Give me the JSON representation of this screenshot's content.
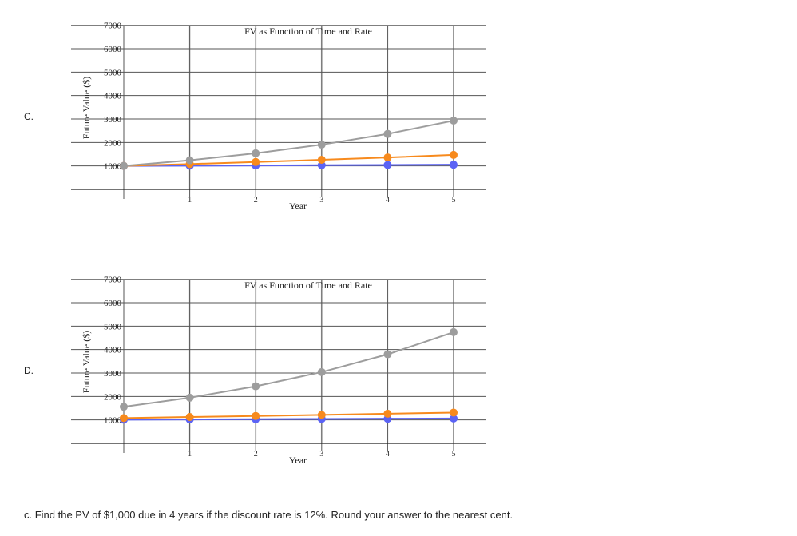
{
  "options": [
    {
      "label": "C."
    },
    {
      "label": "D."
    }
  ],
  "question": "c. Find the PV of $1,000 due in 4 years if the discount rate is 12%. Round your answer to the nearest cent.",
  "colors": {
    "series": [
      "#5b63f5",
      "#f78a1d",
      "#9d9d9d"
    ],
    "grid_major": "#555555",
    "grid_minor": "#dddddd"
  },
  "chart_data": [
    {
      "type": "line",
      "title": "FV as Function of Time and Rate",
      "xlabel": "Year",
      "ylabel": "Future Value ($)",
      "x": [
        0,
        1,
        2,
        3,
        4,
        5
      ],
      "x_tick_labels": [
        "1",
        "2",
        "3",
        "4",
        "5"
      ],
      "y_ticks": [
        1000,
        2000,
        3000,
        4000,
        5000,
        6000,
        7000
      ],
      "ylim": [
        0,
        7000
      ],
      "xlim": [
        0,
        5.5
      ],
      "grid": true,
      "series": [
        {
          "values": [
            1000,
            1010,
            1020,
            1030,
            1041,
            1051
          ],
          "color": "#5b63f5"
        },
        {
          "values": [
            1000,
            1080,
            1166,
            1260,
            1360,
            1469
          ],
          "color": "#f78a1d"
        },
        {
          "values": [
            1000,
            1240,
            1538,
            1907,
            2364,
            2932
          ],
          "color": "#9d9d9d"
        }
      ]
    },
    {
      "type": "line",
      "title": "FV as Function of Time and Rate",
      "xlabel": "Year",
      "ylabel": "Future Value ($)",
      "x": [
        0,
        1,
        2,
        3,
        4,
        5
      ],
      "x_tick_labels": [
        "1",
        "2",
        "3",
        "4",
        "5"
      ],
      "y_ticks": [
        1000,
        2000,
        3000,
        4000,
        5000,
        6000,
        7000
      ],
      "ylim": [
        0,
        7000
      ],
      "xlim": [
        0,
        5.5
      ],
      "grid": true,
      "series": [
        {
          "values": [
            1010,
            1020,
            1030,
            1041,
            1051,
            1062
          ],
          "color": "#5b63f5"
        },
        {
          "values": [
            1080,
            1124,
            1169,
            1215,
            1264,
            1314
          ],
          "color": "#f78a1d"
        },
        {
          "values": [
            1560,
            1948,
            2434,
            3040,
            3797,
            4743
          ],
          "color": "#9d9d9d"
        }
      ]
    }
  ]
}
